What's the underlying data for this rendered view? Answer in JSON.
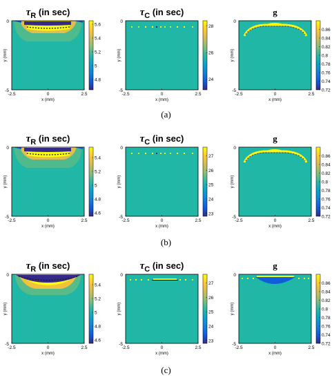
{
  "row_labels": [
    "(a)",
    "(b)",
    "(c)"
  ],
  "colors": {
    "background_field": "#20B7A6",
    "parula": [
      "#352A87",
      "#0F5CDD",
      "#1481D6",
      "#06A4CA",
      "#2EB7A4",
      "#87BF77",
      "#D1BB59",
      "#FEC832",
      "#F9FB0E"
    ]
  },
  "chart_data": [
    {
      "type": "heatmap",
      "row": "(a)",
      "title": "τR (in sec)",
      "title_main": "τ",
      "title_sub": "R",
      "title_rest": " (in sec)",
      "xlabel": "x (mm)",
      "ylabel": "y (mm)",
      "xlim": [
        -2.5,
        2.5
      ],
      "ylim": [
        -5,
        0
      ],
      "xticks": [
        "-2.5",
        "0",
        "2.5"
      ],
      "xtick_values": [
        -2.5,
        0,
        2.5
      ],
      "yticks": [
        "0",
        "-5"
      ],
      "ytick_values": [
        0,
        -5
      ],
      "clim": [
        4.65,
        5.65
      ],
      "cticks": [
        "5.6",
        "5.4",
        "5.2",
        "5",
        "4.8"
      ],
      "ctick_values": [
        5.6,
        5.4,
        5.2,
        5.0,
        4.8
      ],
      "field_value": 5.1,
      "pattern": "tauR"
    },
    {
      "type": "heatmap",
      "row": "(a)",
      "title": "τC (in sec)",
      "title_main": "τ",
      "title_sub": "C",
      "title_rest": " (in sec)",
      "xlabel": "x (mm)",
      "ylabel": "y (mm)",
      "xlim": [
        -2.5,
        2.5
      ],
      "ylim": [
        -5,
        0
      ],
      "xticks": [
        "-2.5",
        "0",
        "2.5"
      ],
      "xtick_values": [
        -2.5,
        0,
        2.5
      ],
      "yticks": [
        "0",
        "-5"
      ],
      "ytick_values": [
        0,
        -5
      ],
      "clim": [
        23.2,
        28.4
      ],
      "cticks": [
        "28",
        "26",
        "24"
      ],
      "ctick_values": [
        28,
        26,
        24
      ],
      "field_value": 25.8,
      "pattern": "tauC"
    },
    {
      "type": "heatmap",
      "row": "(a)",
      "title": "g",
      "title_main": "g",
      "title_sub": "",
      "title_rest": "",
      "xlabel": "x (mm)",
      "ylabel": "y (mm)",
      "xlim": [
        -2.5,
        2.5
      ],
      "ylim": [
        -5,
        0
      ],
      "xticks": [
        "-2.5",
        "0",
        "2.5"
      ],
      "xtick_values": [
        -2.5,
        0,
        2.5
      ],
      "yticks": [
        "0",
        "-5"
      ],
      "ytick_values": [
        0,
        -5
      ],
      "clim": [
        0.72,
        0.88
      ],
      "cticks": [
        "0.86",
        "0.84",
        "0.82",
        "0.8",
        "0.78",
        "0.76",
        "0.74",
        "0.72"
      ],
      "ctick_values": [
        0.86,
        0.84,
        0.82,
        0.8,
        0.78,
        0.76,
        0.74,
        0.72
      ],
      "field_value": 0.8,
      "pattern": "g"
    },
    {
      "type": "heatmap",
      "row": "(b)",
      "title": "τR (in sec)",
      "title_main": "τ",
      "title_sub": "R",
      "title_rest": " (in sec)",
      "xlabel": "x (mm)",
      "ylabel": "y (mm)",
      "xlim": [
        -2.5,
        2.5
      ],
      "ylim": [
        -5,
        0
      ],
      "xticks": [
        "-2.5",
        "0",
        "2.5"
      ],
      "xtick_values": [
        -2.5,
        0,
        2.5
      ],
      "yticks": [
        "0",
        "-5"
      ],
      "ytick_values": [
        0,
        -5
      ],
      "clim": [
        4.55,
        5.55
      ],
      "cticks": [
        "5.4",
        "5.2",
        "5",
        "4.8",
        "4.6"
      ],
      "ctick_values": [
        5.4,
        5.2,
        5.0,
        4.8,
        4.6
      ],
      "field_value": 5.05,
      "pattern": "tauR"
    },
    {
      "type": "heatmap",
      "row": "(b)",
      "title": "τC (in sec)",
      "title_main": "τ",
      "title_sub": "C",
      "title_rest": " (in sec)",
      "xlabel": "x (mm)",
      "ylabel": "y (mm)",
      "xlim": [
        -2.5,
        2.5
      ],
      "ylim": [
        -5,
        0
      ],
      "xticks": [
        "-2.5",
        "0",
        "2.5"
      ],
      "xtick_values": [
        -2.5,
        0,
        2.5
      ],
      "yticks": [
        "0",
        "-5"
      ],
      "ytick_values": [
        0,
        -5
      ],
      "clim": [
        22.8,
        27.6
      ],
      "cticks": [
        "27",
        "26",
        "25",
        "24",
        "23"
      ],
      "ctick_values": [
        27,
        26,
        25,
        24,
        23
      ],
      "field_value": 25.2,
      "pattern": "tauC"
    },
    {
      "type": "heatmap",
      "row": "(b)",
      "title": "g",
      "title_main": "g",
      "title_sub": "",
      "title_rest": "",
      "xlabel": "x (mm)",
      "ylabel": "y (mm)",
      "xlim": [
        -2.5,
        2.5
      ],
      "ylim": [
        -5,
        0
      ],
      "xticks": [
        "-2.5",
        "0",
        "2.5"
      ],
      "xtick_values": [
        -2.5,
        0,
        2.5
      ],
      "yticks": [
        "0",
        "-5"
      ],
      "ytick_values": [
        0,
        -5
      ],
      "clim": [
        0.72,
        0.88
      ],
      "cticks": [
        "0.86",
        "0.84",
        "0.82",
        "0.8",
        "0.78",
        "0.76",
        "0.74",
        "0.72"
      ],
      "ctick_values": [
        0.86,
        0.84,
        0.82,
        0.8,
        0.78,
        0.76,
        0.74,
        0.72
      ],
      "field_value": 0.8,
      "pattern": "g"
    },
    {
      "type": "heatmap",
      "row": "(c)",
      "title": "τR (in sec)",
      "title_main": "τ",
      "title_sub": "R",
      "title_rest": " (in sec)",
      "xlabel": "x (mm)",
      "ylabel": "y (mm)",
      "xlim": [
        -2.5,
        2.5
      ],
      "ylim": [
        -5,
        0
      ],
      "xticks": [
        "-2.5",
        "0",
        "2.5"
      ],
      "xtick_values": [
        -2.5,
        0,
        2.5
      ],
      "yticks": [
        "0",
        "-5"
      ],
      "ytick_values": [
        0,
        -5
      ],
      "clim": [
        4.55,
        5.55
      ],
      "cticks": [
        "5.4",
        "5.2",
        "5",
        "4.8",
        "4.6"
      ],
      "ctick_values": [
        5.4,
        5.2,
        5.0,
        4.8,
        4.6
      ],
      "field_value": 5.05,
      "pattern": "tauR_c"
    },
    {
      "type": "heatmap",
      "row": "(c)",
      "title": "τC (in sec)",
      "title_main": "τ",
      "title_sub": "C",
      "title_rest": " (in sec)",
      "xlabel": "x (mm)",
      "ylabel": "y (mm)",
      "xlim": [
        -2.5,
        2.5
      ],
      "ylim": [
        -5,
        0
      ],
      "xticks": [
        "-2.5",
        "0",
        "2.5"
      ],
      "xtick_values": [
        -2.5,
        0,
        2.5
      ],
      "yticks": [
        "0",
        "-5"
      ],
      "ytick_values": [
        0,
        -5
      ],
      "clim": [
        22.8,
        27.6
      ],
      "cticks": [
        "27",
        "26",
        "25",
        "24",
        "23"
      ],
      "ctick_values": [
        27,
        26,
        25,
        24,
        23
      ],
      "field_value": 25.2,
      "pattern": "tauC_c"
    },
    {
      "type": "heatmap",
      "row": "(c)",
      "title": "g",
      "title_main": "g",
      "title_sub": "",
      "title_rest": "",
      "xlabel": "x (mm)",
      "ylabel": "y (mm)",
      "xlim": [
        -2.5,
        2.5
      ],
      "ylim": [
        -5,
        0
      ],
      "xticks": [
        "-2.5",
        "0",
        "2.5"
      ],
      "xtick_values": [
        -2.5,
        0,
        2.5
      ],
      "yticks": [
        "0",
        "-5"
      ],
      "ytick_values": [
        0,
        -5
      ],
      "clim": [
        0.72,
        0.88
      ],
      "cticks": [
        "0.86",
        "0.84",
        "0.82",
        "0.8",
        "0.78",
        "0.76",
        "0.74",
        "0.72"
      ],
      "ctick_values": [
        0.86,
        0.84,
        0.82,
        0.8,
        0.78,
        0.76,
        0.74,
        0.72
      ],
      "field_value": 0.8,
      "pattern": "g_c"
    }
  ]
}
